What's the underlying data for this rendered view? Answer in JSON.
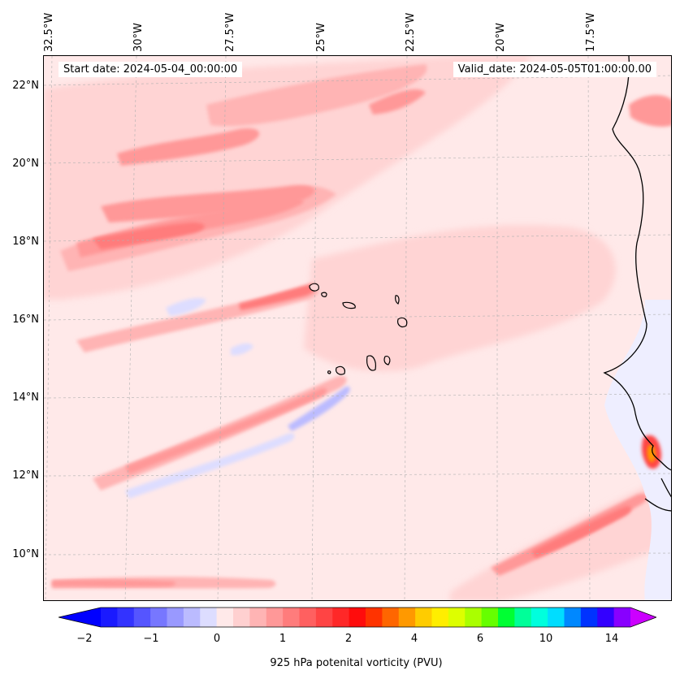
{
  "map": {
    "title_left": "Start date: 2024-05-04_00:00:00",
    "title_right": "Valid_date: 2024-05-05T01:00:00.00",
    "lon_labels": [
      "32.5°W",
      "30°W",
      "27.5°W",
      "25°W",
      "22.5°W",
      "20°W",
      "17.5°W"
    ],
    "lat_labels": [
      "22°N",
      "20°N",
      "18°N",
      "16°N",
      "14°N",
      "12°N",
      "10°N"
    ],
    "region": "Cape Verde Islands and West African coast",
    "field": "925 hPa potential vorticity"
  },
  "colorbar": {
    "label": "925 hPa potenital vorticity (PVU)",
    "ticks": [
      "−2",
      "−1",
      "0",
      "1",
      "2",
      "4",
      "6",
      "10",
      "14"
    ],
    "colors": [
      "#1a1aff",
      "#3333ff",
      "#5555ff",
      "#7777ff",
      "#9999ff",
      "#bbbbff",
      "#ddddff",
      "#ffe9e9",
      "#ffd0d0",
      "#ffb4b4",
      "#ff9898",
      "#ff7c7c",
      "#ff6060",
      "#ff4444",
      "#ff2828",
      "#ff0c0c",
      "#ff3300",
      "#ff6600",
      "#ff9900",
      "#ffcc00",
      "#ffee00",
      "#ddff00",
      "#aaff00",
      "#66ff00",
      "#00ff33",
      "#00ff99",
      "#00ffdd",
      "#00ddff",
      "#0088ff",
      "#0033ff",
      "#3300ff",
      "#8800ff"
    ],
    "under_color": "#0000ff",
    "over_color": "#cc00ff"
  }
}
